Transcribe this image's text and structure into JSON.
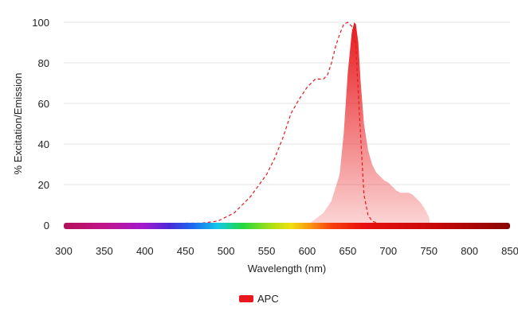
{
  "chart_data": {
    "type": "area",
    "title": "",
    "xlabel": "Wavelength (nm)",
    "ylabel": "% Excitation/Emission",
    "xlim": [
      300,
      850
    ],
    "ylim": [
      0,
      100
    ],
    "x_ticks": [
      300,
      350,
      400,
      450,
      500,
      550,
      600,
      650,
      700,
      750,
      800,
      850
    ],
    "y_ticks": [
      0,
      20,
      40,
      60,
      80,
      100
    ],
    "grid": "horizontal",
    "legend_position": "bottom-center",
    "spectrum_bar": true,
    "series": [
      {
        "name": "APC",
        "kind": "excitation",
        "style": "dashed-line",
        "color": "#e8191c",
        "x": [
          450,
          470,
          490,
          510,
          530,
          550,
          560,
          570,
          580,
          590,
          600,
          610,
          615,
          620,
          625,
          630,
          635,
          640,
          645,
          650,
          655,
          660,
          665,
          670,
          675,
          680,
          690,
          700
        ],
        "y": [
          1,
          1,
          2,
          6,
          14,
          25,
          33,
          43,
          55,
          62,
          68,
          72,
          72,
          72,
          74,
          80,
          88,
          94,
          99,
          100,
          98,
          88,
          50,
          15,
          5,
          2,
          0.5,
          0
        ]
      },
      {
        "name": "APC",
        "kind": "emission",
        "style": "filled-area",
        "color": "#e8191c",
        "x": [
          600,
          610,
          620,
          630,
          640,
          645,
          650,
          655,
          658,
          660,
          663,
          666,
          670,
          675,
          680,
          685,
          690,
          695,
          700,
          705,
          710,
          715,
          720,
          725,
          730,
          735,
          740,
          745,
          750,
          752
        ],
        "y": [
          0,
          3,
          6,
          12,
          25,
          45,
          75,
          95,
          100,
          99,
          90,
          70,
          50,
          37,
          30,
          26,
          24,
          22,
          21,
          19,
          17,
          16,
          16,
          16,
          15,
          13,
          11,
          8,
          4,
          0
        ]
      }
    ],
    "legend": [
      {
        "label": "APC",
        "color": "#e8191c"
      }
    ]
  }
}
